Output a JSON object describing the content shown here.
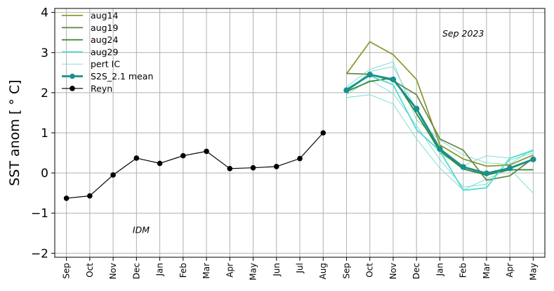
{
  "chart_data": {
    "type": "line",
    "ylabel": "SST anom [ ° C]",
    "ylim": [
      -2.1,
      4.1
    ],
    "yticks": [
      -2,
      -1,
      0,
      1,
      2,
      3,
      4
    ],
    "xticklabels": [
      "Sep",
      "Oct",
      "Nov",
      "Dec",
      "Jan",
      "Feb",
      "Mar",
      "Apr",
      "May",
      "Jun",
      "Jul",
      "Aug",
      "Sep",
      "Oct",
      "Nov",
      "Dec",
      "Jan",
      "Feb",
      "Mar",
      "Apr",
      "May"
    ],
    "xlim": [
      0,
      21
    ],
    "grid": true,
    "legend_position": "top-left",
    "annotations": [
      {
        "text": "Sep 2023",
        "x": 17.0,
        "y": 3.4
      },
      {
        "text": "IDM",
        "x": 3.2,
        "y": -1.5
      }
    ],
    "colors": {
      "aug14": "#8c9a30",
      "aug19": "#6b8a4a",
      "aug24": "#2e8b2e",
      "aug29": "#55dccc",
      "pert": "#72dcd2",
      "mean": "#1a8f8f",
      "reyn": "#000000"
    },
    "series": [
      {
        "name": "aug14",
        "key": "aug14",
        "style": "line",
        "x": [
          12,
          13,
          14,
          15,
          16,
          17,
          18,
          19,
          20
        ],
        "y": [
          2.47,
          3.27,
          2.95,
          2.33,
          0.7,
          0.35,
          0.17,
          0.2,
          0.45
        ]
      },
      {
        "name": "aug19",
        "key": "aug19",
        "style": "line",
        "x": [
          12,
          13,
          14,
          15,
          16,
          17,
          18,
          19,
          20
        ],
        "y": [
          2.48,
          2.46,
          2.3,
          1.95,
          0.85,
          0.57,
          -0.18,
          -0.07,
          0.37
        ]
      },
      {
        "name": "aug24",
        "key": "aug24",
        "style": "line",
        "x": [
          12,
          13,
          14,
          15,
          16,
          17,
          18,
          19,
          20
        ],
        "y": [
          2.03,
          2.28,
          2.37,
          1.48,
          0.55,
          0.1,
          -0.05,
          0.08,
          0.08
        ]
      },
      {
        "name": "aug29",
        "key": "aug29",
        "style": "line",
        "x": [
          12,
          13,
          14,
          15,
          16,
          17,
          18,
          19,
          20
        ],
        "y": [
          2.1,
          2.42,
          2.2,
          1.08,
          0.55,
          -0.43,
          -0.37,
          0.37,
          0.55
        ]
      },
      {
        "name": "pert IC",
        "key": "pert",
        "style": "thin",
        "members": [
          {
            "x": [
              12,
              13,
              14,
              15,
              16,
              17,
              18,
              19,
              20
            ],
            "y": [
              1.88,
              1.95,
              1.72,
              0.85,
              0.12,
              -0.42,
              -0.15,
              0.1,
              -0.5
            ]
          },
          {
            "x": [
              12,
              13,
              14,
              15,
              16,
              17,
              18,
              19,
              20
            ],
            "y": [
              2.0,
              2.53,
              2.65,
              1.58,
              0.48,
              0.18,
              0.43,
              0.37,
              0.58
            ]
          },
          {
            "x": [
              12,
              13,
              14,
              15,
              16,
              17,
              18,
              19,
              20
            ],
            "y": [
              2.15,
              2.58,
              2.77,
              1.32,
              0.82,
              0.45,
              0.25,
              0.22,
              0.6
            ]
          },
          {
            "x": [
              12,
              13,
              14,
              15,
              16,
              17,
              18,
              19,
              20
            ],
            "y": [
              1.95,
              2.32,
              1.98,
              1.18,
              0.33,
              -0.35,
              -0.28,
              0.32,
              0.5
            ]
          }
        ]
      },
      {
        "name": "S2S_2.1 mean",
        "key": "mean",
        "style": "markers",
        "x": [
          12,
          13,
          14,
          15,
          16,
          17,
          18,
          19,
          20
        ],
        "y": [
          2.06,
          2.45,
          2.33,
          1.6,
          0.6,
          0.15,
          -0.01,
          0.12,
          0.34
        ]
      },
      {
        "name": "Reyn",
        "key": "reyn",
        "style": "markers",
        "x": [
          0,
          1,
          2,
          3,
          4,
          5,
          6,
          7,
          8,
          9,
          10,
          11
        ],
        "y": [
          -0.63,
          -0.57,
          -0.05,
          0.37,
          0.24,
          0.43,
          0.54,
          0.11,
          0.13,
          0.16,
          0.36,
          1.0
        ]
      }
    ]
  }
}
